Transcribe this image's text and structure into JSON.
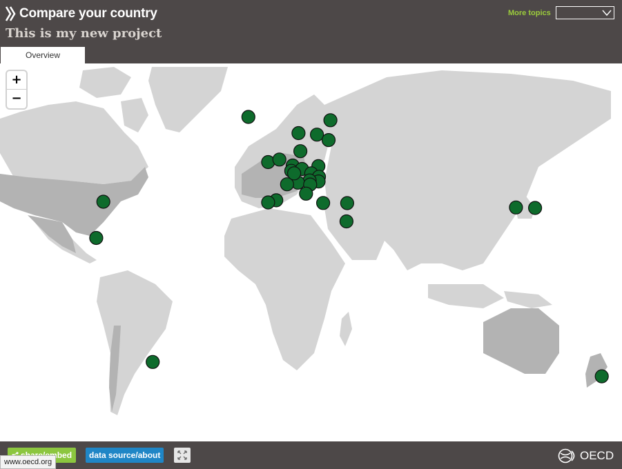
{
  "header": {
    "app_title": "Compare your country",
    "project_title": "This is my new project",
    "more_topics_label": "More topics",
    "topics_select_value": "",
    "tabs": [
      {
        "label": "Overview",
        "active": true
      }
    ]
  },
  "map": {
    "zoom_in_label": "+",
    "zoom_out_label": "−",
    "marker_color": "#0e6b2c",
    "land_color": "#d4d4d4",
    "highlight_land_color": "#b3b3b3",
    "markers": [
      {
        "lat": 64.9,
        "lon": -19.0
      },
      {
        "lat": 60.5,
        "lon": 8.5
      },
      {
        "lat": 60.1,
        "lon": 18.6
      },
      {
        "lat": 64.0,
        "lon": 26.0
      },
      {
        "lat": 58.7,
        "lon": 25.0
      },
      {
        "lat": 56.0,
        "lon": 9.5
      },
      {
        "lat": 53.4,
        "lon": -8.2
      },
      {
        "lat": 54.0,
        "lon": -2.0
      },
      {
        "lat": 52.3,
        "lon": 5.3
      },
      {
        "lat": 50.6,
        "lon": 4.5
      },
      {
        "lat": 51.2,
        "lon": 10.4
      },
      {
        "lat": 52.1,
        "lon": 19.4
      },
      {
        "lat": 49.8,
        "lon": 15.5
      },
      {
        "lat": 48.7,
        "lon": 19.7
      },
      {
        "lat": 47.2,
        "lon": 19.5
      },
      {
        "lat": 47.5,
        "lon": 14.6
      },
      {
        "lat": 46.8,
        "lon": 8.2
      },
      {
        "lat": 46.2,
        "lon": 2.2
      },
      {
        "lat": 49.8,
        "lon": 6.1
      },
      {
        "lat": 46.1,
        "lon": 14.9
      },
      {
        "lat": 42.8,
        "lon": 12.6
      },
      {
        "lat": 40.4,
        "lon": -3.7
      },
      {
        "lat": 39.4,
        "lon": -8.2
      },
      {
        "lat": 39.1,
        "lon": 22.0
      },
      {
        "lat": 39.0,
        "lon": 35.2
      },
      {
        "lat": 31.0,
        "lon": 34.8
      },
      {
        "lat": 39.8,
        "lon": -98.6
      },
      {
        "lat": 23.6,
        "lon": -102.5
      },
      {
        "lat": -35.7,
        "lon": -71.5
      },
      {
        "lat": 36.5,
        "lon": 127.8
      },
      {
        "lat": 36.2,
        "lon": 138.3
      },
      {
        "lat": -40.9,
        "lon": 174.9
      }
    ]
  },
  "footer": {
    "share_label": "share/embed",
    "source_label": "data source/about",
    "brand_label": "OECD",
    "status_url": "www.oecd.org"
  }
}
